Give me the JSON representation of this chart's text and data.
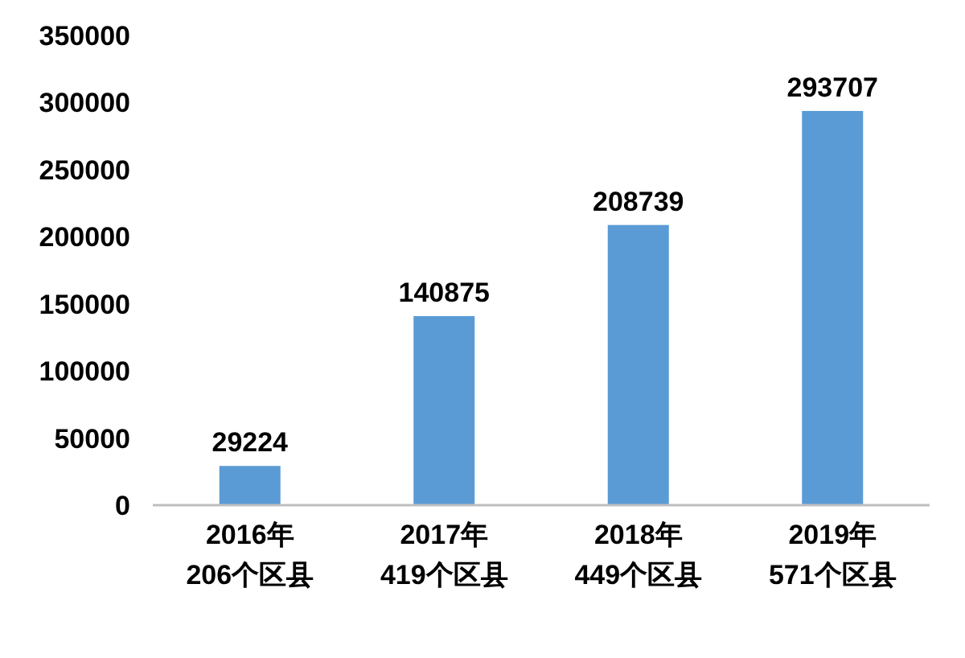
{
  "chart_data": {
    "type": "bar",
    "categories": [
      "2016年\n206个区县",
      "2017年\n419个区县",
      "2018年\n449个区县",
      "2019年\n571个区县"
    ],
    "values": [
      29224,
      140875,
      208739,
      293707
    ],
    "color": "#5b9bd5",
    "ylim": [
      0,
      350000
    ],
    "yticks": [
      0,
      50000,
      100000,
      150000,
      200000,
      250000,
      300000,
      350000
    ],
    "grid": false,
    "data_labels": true
  }
}
